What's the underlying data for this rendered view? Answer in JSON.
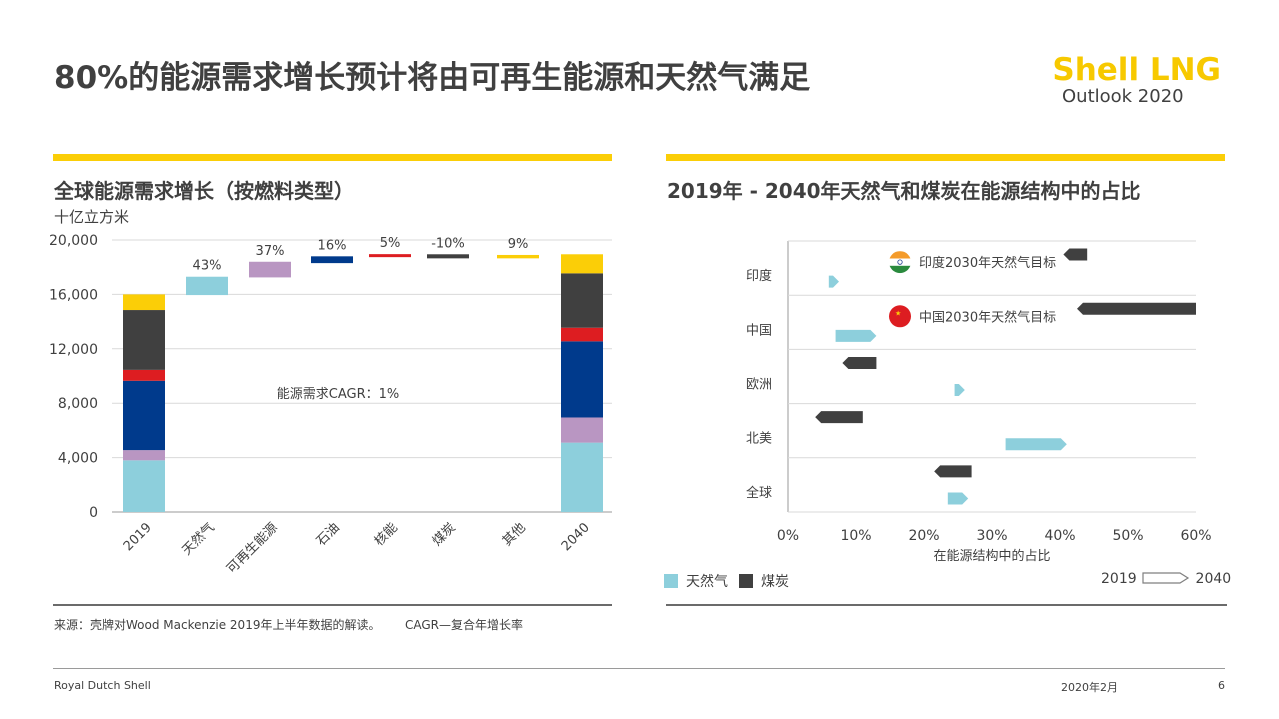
{
  "header": {
    "title": "80%的能源需求增长预计将由可再生能源和天然气满足",
    "logo_line1": "Shell LNG",
    "logo_line2": "Outlook 2020",
    "brand_yellow": "#fbce07"
  },
  "left_panel": {
    "subtitle": "全球能源需求增长（按燃料类型）",
    "unit": "十亿立方米"
  },
  "right_panel": {
    "subtitle": "2019年 - 2040年天然气和煤炭在能源结构中的占比"
  },
  "colors": {
    "gas": "#8dcfdc",
    "renewables": "#b996c2",
    "oil": "#003a8c",
    "nuclear": "#dd1d21",
    "coal": "#404040",
    "other": "#fbce07"
  },
  "chart_data": [
    {
      "type": "bar",
      "subtype": "waterfall",
      "title": "全球能源需求增长（按燃料类型）",
      "ylabel": "十亿立方米",
      "ylim": [
        0,
        20000
      ],
      "yticks": [
        "0",
        "4,000",
        "8,000",
        "12,000",
        "16,000",
        "20,000"
      ],
      "ytick_values": [
        0,
        4000,
        8000,
        12000,
        16000,
        20000
      ],
      "categories": [
        "2019",
        "天然气",
        "可再生能源",
        "石油",
        "核能",
        "煤炭",
        "其他",
        "2040"
      ],
      "annotation": "能源需求CAGR：1%",
      "stacked_2019": [
        {
          "fuel": "gas",
          "value": 3800
        },
        {
          "fuel": "renewables",
          "value": 750
        },
        {
          "fuel": "oil",
          "value": 5100
        },
        {
          "fuel": "nuclear",
          "value": 800
        },
        {
          "fuel": "coal",
          "value": 4400
        },
        {
          "fuel": "other",
          "value": 1150
        }
      ],
      "stacked_2040": [
        {
          "fuel": "gas",
          "value": 5100
        },
        {
          "fuel": "renewables",
          "value": 1850
        },
        {
          "fuel": "oil",
          "value": 5600
        },
        {
          "fuel": "nuclear",
          "value": 1000
        },
        {
          "fuel": "coal",
          "value": 4000
        },
        {
          "fuel": "other",
          "value": 1400
        }
      ],
      "deltas": [
        {
          "category": "天然气",
          "fuel": "gas",
          "start": 15950,
          "end": 17300,
          "label": "43%"
        },
        {
          "category": "可再生能源",
          "fuel": "renewables",
          "start": 17250,
          "end": 18400,
          "label": "37%"
        },
        {
          "category": "石油",
          "fuel": "oil",
          "start": 18300,
          "end": 18800,
          "label": "16%"
        },
        {
          "category": "核能",
          "fuel": "nuclear",
          "start": 18750,
          "end": 18950,
          "label": "5%"
        },
        {
          "category": "煤炭",
          "fuel": "coal",
          "start": 18950,
          "end": 18650,
          "label": "-10%"
        },
        {
          "category": "其他",
          "fuel": "other",
          "start": 18650,
          "end": 18900,
          "label": "9%"
        }
      ]
    },
    {
      "type": "bar",
      "subtype": "arrow-range",
      "title": "2019年 - 2040年天然气和煤炭在能源结构中的占比",
      "xlabel": "在能源结构中的占比",
      "xlim": [
        0,
        60
      ],
      "xticks": [
        "0%",
        "10%",
        "20%",
        "30%",
        "40%",
        "50%",
        "60%"
      ],
      "xtick_values": [
        0,
        10,
        20,
        30,
        40,
        50,
        60
      ],
      "categories": [
        "印度",
        "中国",
        "欧洲",
        "北美",
        "全球"
      ],
      "series": [
        {
          "name": "天然气",
          "fuel": "gas",
          "values": [
            [
              6,
              7.5
            ],
            [
              7,
              13
            ],
            [
              24.5,
              26
            ],
            [
              32,
              41
            ],
            [
              23.5,
              26.5
            ]
          ]
        },
        {
          "name": "煤炭",
          "fuel": "coal",
          "values": [
            [
              44,
              40.5
            ],
            [
              60,
              42.5
            ],
            [
              13,
              8
            ],
            [
              11,
              4
            ],
            [
              27,
              21.5
            ]
          ]
        }
      ],
      "targets": [
        {
          "region": "印度",
          "label": "印度2030年天然气目标"
        },
        {
          "region": "中国",
          "label": "中国2030年天然气目标"
        }
      ],
      "legend": {
        "gas": "天然气",
        "coal": "煤炭",
        "from": "2019",
        "to": "2040"
      },
      "legend_position": "bottom"
    }
  ],
  "footnotes": {
    "source": "来源：壳牌对Wood Mackenzie 2019年上半年数据的解读。",
    "cagr": "CAGR—复合年增长率"
  },
  "footer": {
    "left": "Royal Dutch Shell",
    "date": "2020年2月",
    "page": "6"
  }
}
